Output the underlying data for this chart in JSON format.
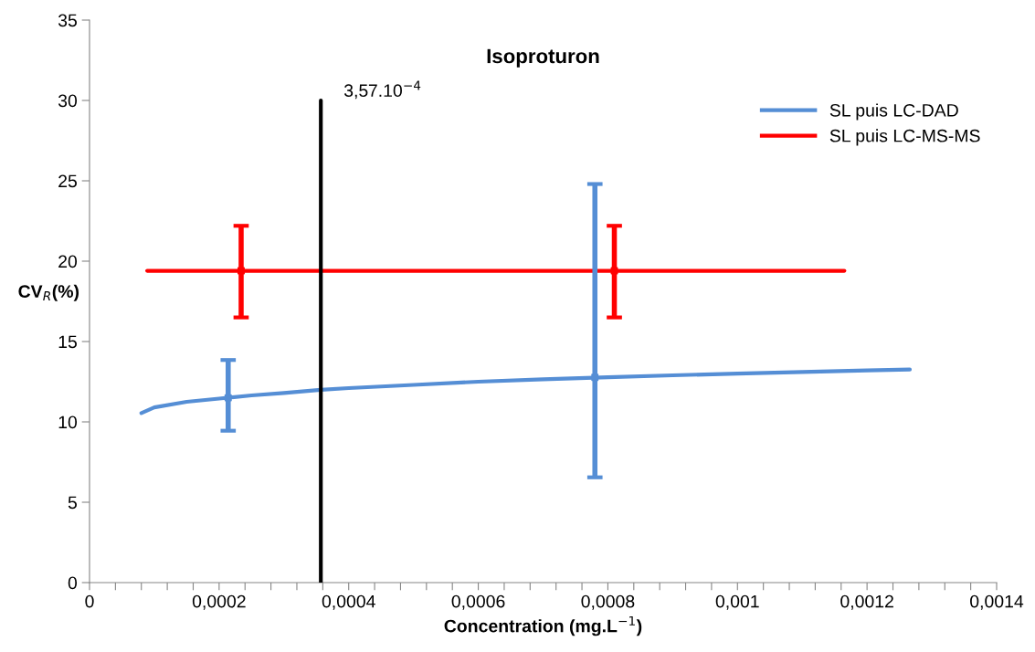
{
  "chart_data": {
    "type": "line",
    "title": "Isoproturon",
    "xlabel": "Concentration (mg.L$^{−1}$)",
    "ylabel": "CV$_{R}$(%)",
    "series": [
      {
        "name": "SL puis LC-DAD",
        "color": "#558ed5",
        "x": [
          8e-05,
          0.0001,
          0.00015,
          0.0002,
          0.00025,
          0.0003,
          0.000357,
          0.0004,
          0.0005,
          0.0006,
          0.0007,
          0.0008,
          0.0009,
          0.001,
          0.0011,
          0.0012,
          0.001266
        ],
        "values": [
          10.55,
          10.9,
          11.25,
          11.45,
          11.65,
          11.8,
          12.0,
          12.1,
          12.3,
          12.5,
          12.65,
          12.78,
          12.9,
          13.0,
          13.1,
          13.2,
          13.26
        ]
      },
      {
        "name": "SL puis LC-MS-MS",
        "color": "#ff0000",
        "x": [
          8.9e-05,
          0.001165
        ],
        "values": [
          19.4,
          19.4
        ]
      },
      {
        "type": "scatter",
        "marker": "square",
        "color": "#558ed5",
        "x": [
          0.000214,
          0.00078
        ],
        "values": [
          11.5,
          12.77
        ],
        "errors": [
          [
            9.45,
            13.85
          ],
          [
            6.55,
            24.8
          ]
        ]
      },
      {
        "type": "scatter",
        "marker": "square",
        "color": "#ff0000",
        "x": [
          0.000234,
          0.00081
        ],
        "values": [
          19.4,
          19.4
        ],
        "errors": [
          [
            16.5,
            22.2
          ],
          [
            16.5,
            22.2
          ]
        ]
      },
      {
        "color": "#000000",
        "x": [
          0.000357,
          0.000357
        ],
        "values": [
          0,
          30
        ]
      }
    ],
    "annotations": [
      {
        "text": "3,57.10$^{−4}$",
        "x": 0.000357,
        "y": 30
      }
    ],
    "xlim": [
      0,
      0.0014
    ],
    "ylim": [
      0,
      35
    ],
    "xticks": [
      {
        "value": 0,
        "label": "0"
      },
      {
        "value": 4e-05,
        "label": null
      },
      {
        "value": 8e-05,
        "label": null
      },
      {
        "value": 0.00012,
        "label": null
      },
      {
        "value": 0.00016,
        "label": null
      },
      {
        "value": 0.0002,
        "label": "0,0002"
      },
      {
        "value": 0.00024,
        "label": null
      },
      {
        "value": 0.00028,
        "label": null
      },
      {
        "value": 0.00032,
        "label": null
      },
      {
        "value": 0.00036,
        "label": null
      },
      {
        "value": 0.0004,
        "label": "0,0004"
      },
      {
        "value": 0.00044,
        "label": null
      },
      {
        "value": 0.00048,
        "label": null
      },
      {
        "value": 0.00052,
        "label": null
      },
      {
        "value": 0.00056,
        "label": null
      },
      {
        "value": 0.0006,
        "label": "0,0006"
      },
      {
        "value": 0.00064,
        "label": null
      },
      {
        "value": 0.00068,
        "label": null
      },
      {
        "value": 0.00072,
        "label": null
      },
      {
        "value": 0.00076,
        "label": null
      },
      {
        "value": 0.0008,
        "label": "0,0008"
      },
      {
        "value": 0.00084,
        "label": null
      },
      {
        "value": 0.00088,
        "label": null
      },
      {
        "value": 0.00092,
        "label": null
      },
      {
        "value": 0.00096,
        "label": null
      },
      {
        "value": 0.001,
        "label": "0,001"
      },
      {
        "value": 0.00104,
        "label": null
      },
      {
        "value": 0.00108,
        "label": null
      },
      {
        "value": 0.00112,
        "label": null
      },
      {
        "value": 0.00116,
        "label": null
      },
      {
        "value": 0.0012,
        "label": "0,0012"
      },
      {
        "value": 0.00124,
        "label": null
      },
      {
        "value": 0.00128,
        "label": null
      },
      {
        "value": 0.00132,
        "label": null
      },
      {
        "value": 0.00136,
        "label": null
      },
      {
        "value": 0.0014,
        "label": "0,0014"
      }
    ],
    "yticks": [
      0,
      5,
      10,
      15,
      20,
      25,
      30,
      35
    ],
    "legend": "top right",
    "marker": "none",
    "line_style": "solid"
  }
}
